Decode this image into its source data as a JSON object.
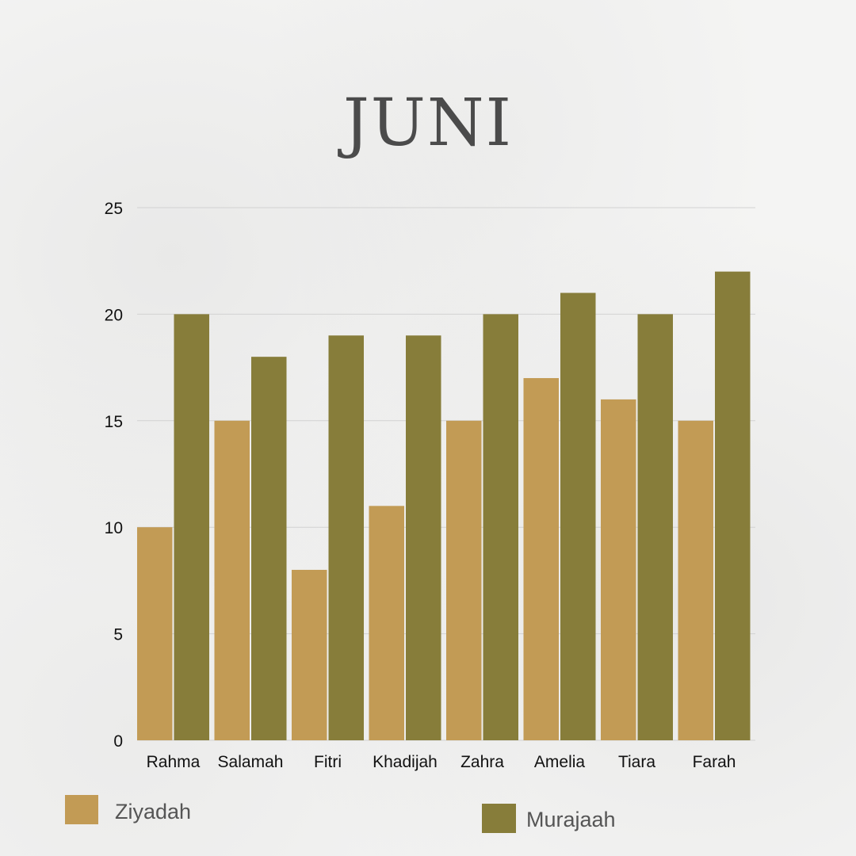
{
  "colors": {
    "ziyadah": "#c29b55",
    "murajaah": "#877d3a",
    "grid": "#d2d2d2",
    "text": "#111111"
  },
  "chart_data": {
    "type": "bar",
    "title": "JUNI",
    "categories": [
      "Rahma",
      "Salamah",
      "Fitri",
      "Khadijah",
      "Zahra",
      "Amelia",
      "Tiara",
      "Farah"
    ],
    "series": [
      {
        "name": "Ziyadah",
        "values": [
          10,
          15,
          8,
          11,
          15,
          17,
          16,
          15
        ]
      },
      {
        "name": "Murajaah",
        "values": [
          20,
          18,
          19,
          19,
          20,
          21,
          20,
          22
        ]
      }
    ],
    "yticks": [
      0,
      5,
      10,
      15,
      20,
      25
    ],
    "ylim": [
      0,
      25
    ],
    "grid": true,
    "legend_position": "bottom"
  }
}
